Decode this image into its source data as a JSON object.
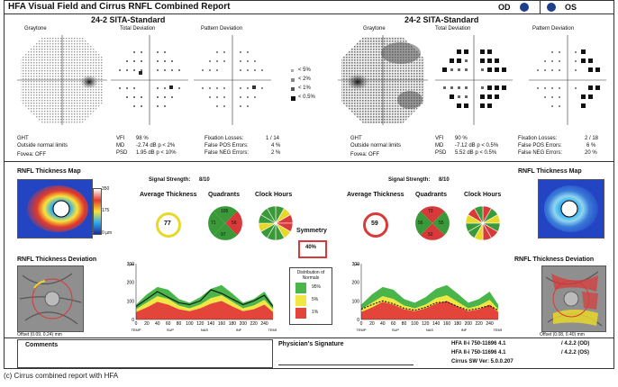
{
  "header": {
    "title": "HFA Visual Field and Cirrus RNFL Combined Report",
    "od": "OD",
    "os": "OS",
    "dot_color": "#1f3f8a"
  },
  "left_field": {
    "test": "24-2 SITA-Standard",
    "graytone": "Graytone",
    "total_dev": "Total Deviation",
    "pattern_dev": "Pattern Deviation",
    "ght_label": "GHT",
    "ght_value": "Outside normal limits",
    "fovea": "Fovea: OFF",
    "vfi_label": "VFI",
    "vfi_value": "98 %",
    "md_label": "MD",
    "md_value": "-2.74 dB  p < 2%",
    "psd_label": "PSD",
    "psd_value": "1.95 dB  p < 10%",
    "fix_label": "Fixation Losses:",
    "fix_value": "1 / 14",
    "fpos_label": "False POS Errors:",
    "fpos_value": "4 %",
    "fneg_label": "False NEG Errors:",
    "fneg_value": "2 %"
  },
  "legend": {
    "p5": "< 5%",
    "p2": "< 2%",
    "p1": "< 1%",
    "p05": "< 0.5%"
  },
  "right_field": {
    "test": "24-2 SITA-Standard",
    "graytone": "Graytone",
    "total_dev": "Total Deviation",
    "pattern_dev": "Pattern Deviation",
    "ght_label": "GHT",
    "ght_value": "Outside normal limits",
    "fovea": "Fovea: OFF",
    "vfi_label": "VFI",
    "vfi_value": "90 %",
    "md_label": "MD",
    "md_value": "-7.12 dB  p < 0.5%",
    "psd_label": "PSD",
    "psd_value": "5.52 dB  p < 0.5%",
    "fix_label": "Fixation Losses:",
    "fix_value": "2 / 18",
    "fpos_label": "False POS Errors:",
    "fpos_value": "6 %",
    "fneg_label": "False NEG Errors:",
    "fneg_value": "20 %"
  },
  "rnfl": {
    "map_label": "RNFL Thickness Map",
    "dev_label": "RNFL Thickness Deviation",
    "signal_label": "Signal Strength:",
    "signal_left": "8/10",
    "signal_right": "8/10",
    "avg_label": "Average Thickness",
    "quad_label": "Quadrants",
    "clock_label": "Clock Hours",
    "avg_left": "77",
    "avg_right": "59",
    "symmetry_label": "Symmetry",
    "symmetry_value": "40%",
    "scale_max": "350",
    "scale_mid": "175",
    "scale_min": "0 µm",
    "offset_left": "Offset (0.09, 0.24) mm",
    "offset_right": "Offset (0.08, 0.40) mm",
    "dist_title": "Distribution of Normals",
    "dist_95": "95%",
    "dist_5": "5%",
    "dist_1": "1%",
    "quad_left": [
      "105",
      "97",
      "56",
      "71"
    ],
    "quad_right": [
      "73",
      "52",
      "55",
      "56"
    ]
  },
  "chart_data": [
    {
      "type": "area",
      "title": "",
      "ylabel": "µm",
      "ylim": [
        0,
        300
      ],
      "x": [
        0,
        20,
        40,
        60,
        80,
        100,
        120,
        140,
        160,
        180,
        200,
        220,
        240,
        256
      ],
      "xticks": [
        "0",
        "20",
        "40",
        "60",
        "80",
        "100",
        "120",
        "140",
        "160",
        "180",
        "200",
        "220",
        "240"
      ],
      "xlabels": [
        "TEMP",
        "SUP",
        "NAS",
        "INF",
        "TEMP"
      ],
      "bands": {
        "red_top": [
          40,
          65,
          95,
          80,
          55,
          45,
          60,
          85,
          100,
          70,
          45,
          55,
          80,
          40
        ],
        "yellow_top": [
          55,
          90,
          125,
          110,
          75,
          60,
          80,
          115,
          130,
          95,
          60,
          75,
          105,
          55
        ],
        "green_top": [
          80,
          135,
          175,
          160,
          110,
          90,
          120,
          165,
          185,
          140,
          90,
          110,
          150,
          80
        ],
        "white_top": [
          120,
          185,
          230,
          215,
          150,
          125,
          165,
          220,
          240,
          190,
          125,
          150,
          200,
          120
        ]
      },
      "series": [
        {
          "name": "",
          "values": [
            70,
            110,
            150,
            120,
            90,
            80,
            100,
            160,
            140,
            110,
            80,
            100,
            130,
            70
          ]
        }
      ]
    },
    {
      "type": "area",
      "title": "",
      "ylabel": "µm",
      "ylim": [
        0,
        300
      ],
      "x": [
        0,
        20,
        40,
        60,
        80,
        100,
        120,
        140,
        160,
        180,
        200,
        220,
        240,
        256
      ],
      "xticks": [
        "0",
        "20",
        "40",
        "60",
        "80",
        "100",
        "120",
        "140",
        "160",
        "180",
        "200",
        "220",
        "240"
      ],
      "xlabels": [
        "TEMP",
        "SUP",
        "NAS",
        "INF",
        "TEMP"
      ],
      "bands": {
        "red_top": [
          40,
          65,
          95,
          80,
          55,
          45,
          60,
          85,
          100,
          70,
          45,
          55,
          80,
          40
        ],
        "yellow_top": [
          55,
          90,
          125,
          110,
          75,
          60,
          80,
          115,
          130,
          95,
          60,
          75,
          105,
          55
        ],
        "green_top": [
          80,
          135,
          175,
          160,
          110,
          90,
          120,
          165,
          185,
          140,
          90,
          110,
          150,
          80
        ],
        "white_top": [
          120,
          185,
          230,
          215,
          150,
          125,
          165,
          220,
          240,
          190,
          125,
          150,
          200,
          120
        ]
      },
      "series": [
        {
          "name": "",
          "values": [
            55,
            80,
            100,
            85,
            60,
            50,
            65,
            90,
            95,
            70,
            50,
            60,
            75,
            50
          ]
        }
      ]
    }
  ],
  "footer": {
    "comments": "Comments",
    "signature": "Physician's Signature",
    "hfa1": "HFA II-i   750-11696 4.1",
    "hfa1_r": "/ 4.2.2   (OD)",
    "hfa2": "HFA II-i   750-11696 4.1",
    "hfa2_r": "/ 4.2.2   (OS)",
    "cirrus": "Cirrus SW Ver:   5.0.0.207"
  },
  "caption": "(c) Cirrus combined report with HFA"
}
